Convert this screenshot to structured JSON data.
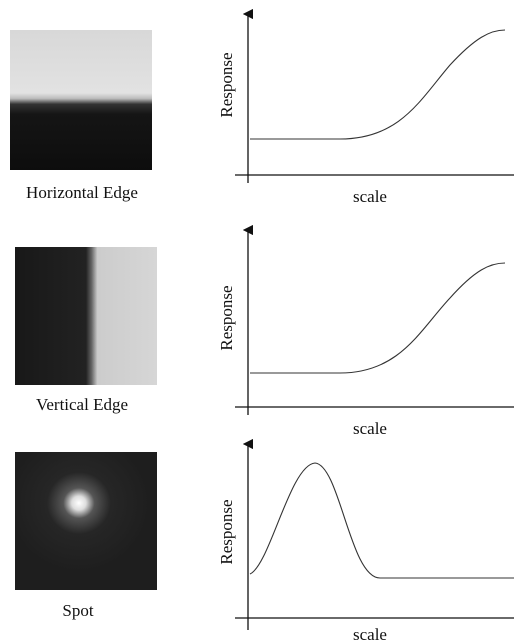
{
  "panels": [
    {
      "label": "Horizontal Edge",
      "y_label": "Response",
      "x_label": "scale"
    },
    {
      "label": "Vertical Edge",
      "y_label": "Response",
      "x_label": "scale"
    },
    {
      "label": "Spot",
      "y_label": "Response",
      "x_label": "scale"
    }
  ]
}
